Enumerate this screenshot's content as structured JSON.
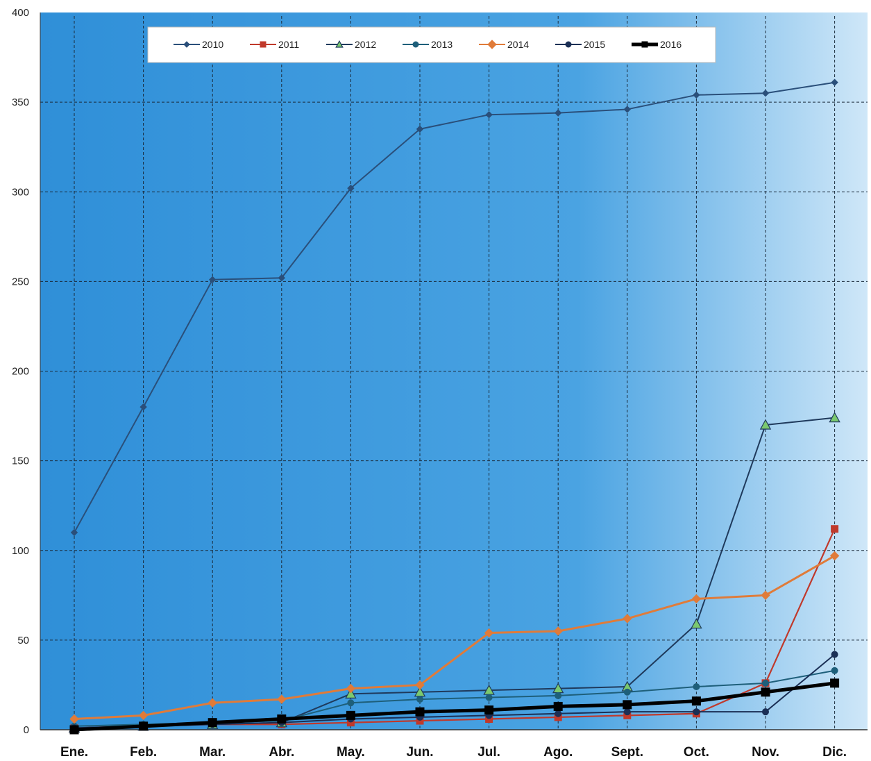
{
  "chart_data": {
    "type": "line",
    "categories": [
      "Ene.",
      "Feb.",
      "Mar.",
      "Abr.",
      "May.",
      "Jun.",
      "Jul.",
      "Ago.",
      "Sept.",
      "Oct.",
      "Nov.",
      "Dic."
    ],
    "ylim": [
      0,
      400
    ],
    "yticks": [
      0,
      50,
      100,
      150,
      200,
      250,
      300,
      350,
      400
    ],
    "grid": true,
    "legend_position": "top",
    "title": "",
    "xlabel": "",
    "ylabel": "",
    "series": [
      {
        "name": "2010",
        "color": "#2a4f7a",
        "marker": "diamond",
        "values": [
          110,
          180,
          251,
          252,
          302,
          335,
          343,
          344,
          346,
          354,
          355,
          361
        ]
      },
      {
        "name": "2011",
        "color": "#c0392b",
        "marker": "square",
        "values": [
          1,
          2,
          3,
          3,
          4,
          5,
          6,
          7,
          8,
          9,
          26,
          112
        ]
      },
      {
        "name": "2012",
        "color": "#1f3a5c",
        "marker": "triangle",
        "values": [
          1,
          2,
          3,
          4,
          20,
          21,
          22,
          23,
          24,
          59,
          170,
          174
        ]
      },
      {
        "name": "2013",
        "color": "#1e5f7a",
        "marker": "circle",
        "values": [
          2,
          3,
          4,
          5,
          15,
          17,
          18,
          19,
          21,
          24,
          26,
          33
        ]
      },
      {
        "name": "2014",
        "color": "#e07b39",
        "marker": "diamond",
        "values": [
          6,
          8,
          15,
          17,
          23,
          25,
          54,
          55,
          62,
          73,
          75,
          97
        ]
      },
      {
        "name": "2015",
        "color": "#1b2f55",
        "marker": "circle",
        "values": [
          1,
          2,
          3,
          4,
          6,
          7,
          8,
          9,
          10,
          10,
          10,
          42
        ]
      },
      {
        "name": "2016",
        "color": "#000000",
        "marker": "square",
        "values": [
          0,
          2,
          4,
          6,
          8,
          10,
          11,
          13,
          14,
          16,
          21,
          26
        ]
      }
    ]
  }
}
